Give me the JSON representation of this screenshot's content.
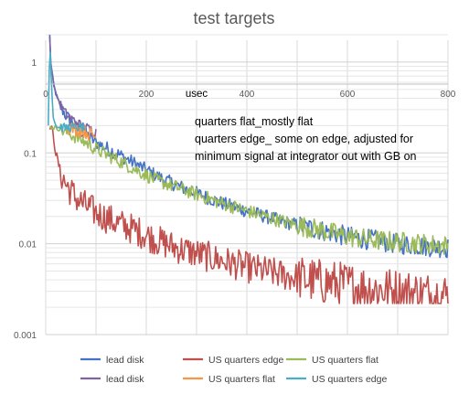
{
  "chart_data": {
    "type": "line",
    "title": "test targets",
    "xlabel": "usec",
    "ylabel": "",
    "xlim": [
      0,
      800
    ],
    "ylim": [
      0.001,
      2
    ],
    "y_scale": "log",
    "grid": true,
    "legend_position": "bottom",
    "x_ticks": [
      "0",
      "200",
      "400",
      "600",
      "800"
    ],
    "y_ticks": [
      {
        "value": 1,
        "label": "1"
      },
      {
        "value": 0.1,
        "label": "0.1"
      },
      {
        "value": 0.01,
        "label": "0.01"
      },
      {
        "value": 0.001,
        "label": "0.001"
      }
    ],
    "annotations": [
      "quarters flat_mostly flat",
      "quarters edge_ some on edge, adjusted for",
      "minimum signal at integrator out with GB on"
    ],
    "series": [
      {
        "name": "lead disk",
        "color": "#4472C4",
        "noise": 0.08,
        "x": [
          8,
          10,
          15,
          20,
          30,
          40,
          60,
          80,
          100,
          140,
          180,
          220,
          260,
          300,
          350,
          400,
          450,
          500,
          550,
          600,
          650,
          700,
          750,
          800
        ],
        "y": [
          2.2,
          1.0,
          0.6,
          0.45,
          0.32,
          0.26,
          0.19,
          0.16,
          0.13,
          0.1,
          0.075,
          0.056,
          0.044,
          0.036,
          0.028,
          0.023,
          0.019,
          0.016,
          0.014,
          0.012,
          0.011,
          0.01,
          0.0095,
          0.009
        ]
      },
      {
        "name": "US quarters edge",
        "color": "#C0504D",
        "noise": 0.18,
        "x": [
          8,
          10,
          15,
          20,
          30,
          40,
          60,
          80,
          100,
          140,
          180,
          220,
          260,
          300,
          350,
          400,
          450,
          500,
          550,
          600,
          650,
          700,
          750,
          800
        ],
        "y": [
          0.2,
          0.19,
          0.16,
          0.1,
          0.06,
          0.045,
          0.032,
          0.026,
          0.022,
          0.017,
          0.014,
          0.011,
          0.009,
          0.0078,
          0.0065,
          0.0055,
          0.0048,
          0.0042,
          0.0038,
          0.0035,
          0.0032,
          0.003,
          0.0028,
          0.0027
        ]
      },
      {
        "name": "US quarters flat",
        "color": "#9BBB59",
        "noise": 0.08,
        "x": [
          8,
          10,
          15,
          20,
          30,
          40,
          60,
          80,
          100,
          140,
          180,
          220,
          260,
          300,
          350,
          400,
          450,
          500,
          550,
          600,
          650,
          700,
          750,
          800
        ],
        "y": [
          0.2,
          0.19,
          0.19,
          0.19,
          0.18,
          0.17,
          0.15,
          0.13,
          0.11,
          0.085,
          0.065,
          0.05,
          0.042,
          0.035,
          0.028,
          0.023,
          0.019,
          0.016,
          0.014,
          0.012,
          0.011,
          0.0105,
          0.01,
          0.0095
        ]
      },
      {
        "name": "lead disk",
        "color": "#8064A2",
        "noise": 0.06,
        "x": [
          8,
          10,
          15,
          20,
          30,
          40,
          50,
          60,
          70,
          80,
          90,
          100
        ],
        "y": [
          2.0,
          1.0,
          0.6,
          0.45,
          0.33,
          0.27,
          0.24,
          0.22,
          0.2,
          0.19,
          0.18,
          0.17
        ]
      },
      {
        "name": "US quarters flat",
        "color": "#F79646",
        "noise": 0.08,
        "x": [
          40,
          50,
          60,
          70,
          80,
          90,
          100
        ],
        "y": [
          0.2,
          0.19,
          0.18,
          0.18,
          0.17,
          0.16,
          0.15
        ]
      },
      {
        "name": "US quarters edge",
        "color": "#4BACC6",
        "noise": 0.05,
        "x": [
          5,
          8,
          12,
          15,
          20,
          25,
          30,
          40,
          50,
          60,
          70,
          80
        ],
        "y": [
          0.2,
          1.8,
          0.5,
          0.25,
          0.2,
          0.19,
          0.19,
          0.19,
          0.19,
          0.19,
          0.19,
          0.19
        ]
      }
    ]
  }
}
